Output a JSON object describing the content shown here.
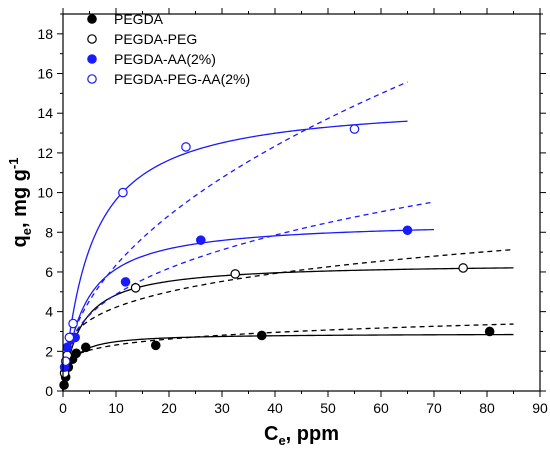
{
  "chart_data": {
    "type": "scatter",
    "xlabel": {
      "main": "C",
      "sub": "e",
      "rest": ", ppm"
    },
    "ylabel": {
      "main": "q",
      "sub": "e",
      "rest": ", mg g",
      "sup": "-1"
    },
    "xlim": [
      0,
      90
    ],
    "ylim": [
      0,
      19
    ],
    "xticks": [
      0,
      10,
      20,
      30,
      40,
      50,
      60,
      70,
      80,
      90
    ],
    "yticks": [
      0,
      2,
      4,
      6,
      8,
      10,
      12,
      14,
      16,
      18
    ],
    "grid": false,
    "legend_position": "top-left",
    "series": [
      {
        "name": "PEGDA",
        "color": "#000000",
        "marker": "filled-circle",
        "points": [
          [
            0.2,
            0.3
          ],
          [
            0.5,
            0.7
          ],
          [
            1.0,
            1.2
          ],
          [
            1.8,
            1.6
          ],
          [
            2.5,
            1.9
          ],
          [
            4.3,
            2.2
          ],
          [
            17.5,
            2.3
          ],
          [
            37.5,
            2.8
          ],
          [
            80.5,
            3.0
          ]
        ],
        "fits": [
          {
            "style": "solid",
            "model": "langmuir",
            "params": {
              "qm": 2.9,
              "K": 0.6
            },
            "xmax": 85
          },
          {
            "style": "dashed",
            "model": "freundlich",
            "params": {
              "Kf": 1.55,
              "n": 0.175
            },
            "xmax": 85
          }
        ]
      },
      {
        "name": "PEGDA-PEG",
        "color": "#000000",
        "marker": "open-circle",
        "points": [
          [
            0.3,
            0.9
          ],
          [
            0.8,
            1.8
          ],
          [
            1.6,
            2.7
          ],
          [
            13.7,
            5.2
          ],
          [
            32.5,
            5.9
          ],
          [
            75.5,
            6.2
          ]
        ],
        "fits": [
          {
            "style": "solid",
            "model": "langmuir",
            "params": {
              "qm": 6.45,
              "K": 0.3
            },
            "xmax": 85
          },
          {
            "style": "dashed",
            "model": "freundlich",
            "params": {
              "Kf": 2.4,
              "n": 0.245
            },
            "xmax": 85
          }
        ]
      },
      {
        "name": "PEGDA-AA(2%)",
        "color": "#1a1aff",
        "marker": "filled-circle",
        "points": [
          [
            0.3,
            1.2
          ],
          [
            0.8,
            2.2
          ],
          [
            1.5,
            2.6
          ],
          [
            2.3,
            2.7
          ],
          [
            11.8,
            5.5
          ],
          [
            26.0,
            7.6
          ],
          [
            65.0,
            8.1
          ]
        ],
        "fits": [
          {
            "style": "solid",
            "model": "langmuir",
            "params": {
              "qm": 8.6,
              "K": 0.25
            },
            "xmax": 70
          },
          {
            "style": "dashed",
            "model": "freundlich",
            "params": {
              "Kf": 2.2,
              "n": 0.345
            },
            "xmax": 70
          }
        ]
      },
      {
        "name": "PEGDA-PEG-AA(2%)",
        "color": "#1a1aff",
        "marker": "open-circle",
        "points": [
          [
            0.5,
            1.5
          ],
          [
            1.2,
            2.7
          ],
          [
            1.9,
            3.4
          ],
          [
            11.3,
            10.0
          ],
          [
            23.2,
            12.3
          ],
          [
            55.0,
            13.2
          ]
        ],
        "fits": [
          {
            "style": "solid",
            "model": "langmuir",
            "params": {
              "qm": 14.7,
              "K": 0.19
            },
            "xmax": 65
          },
          {
            "style": "dashed",
            "model": "freundlich",
            "params": {
              "Kf": 2.1,
              "n": 0.48
            },
            "xmax": 65
          }
        ]
      }
    ]
  }
}
